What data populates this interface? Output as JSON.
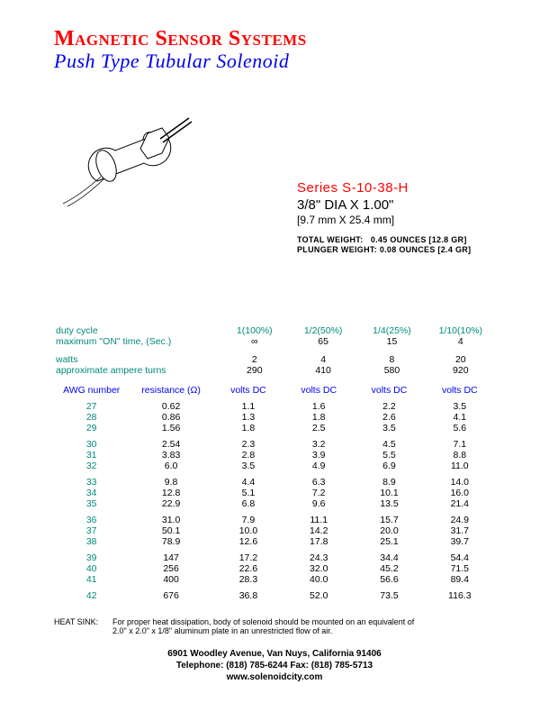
{
  "colors": {
    "red": "#ff0000",
    "blue": "#0000ee",
    "teal": "#008b7a",
    "black": "#000000"
  },
  "header": {
    "company": "Magnetic Sensor Systems",
    "subtitle": "Push Type Tubular Solenoid"
  },
  "series": {
    "name": "Series S-10-38-H",
    "dim_in": "3/8\" DIA X 1.00\"",
    "dim_mm": "[9.7 mm X 25.4 mm]",
    "total_weight_label": "TOTAL WEIGHT:",
    "total_weight_val": "0.45 OUNCES [12.8 GR]",
    "plunger_weight_label": "PLUNGER WEIGHT:",
    "plunger_weight_val": "0.08 OUNCES [2.4 GR]"
  },
  "duty": {
    "row1_label": "duty cycle",
    "row1": [
      "1(100%)",
      "1/2(50%)",
      "1/4(25%)",
      "1/10(10%)"
    ],
    "row2_label": "maximum \"ON\" time, (Sec.)",
    "row2": [
      "∞",
      "65",
      "15",
      "4"
    ],
    "row3_label": "watts",
    "row3": [
      "2",
      "4",
      "8",
      "20"
    ],
    "row4_label": "approximate ampere turns",
    "row4": [
      "290",
      "410",
      "580",
      "920"
    ]
  },
  "table": {
    "headers": [
      "AWG number",
      "resistance (Ω)",
      "volts DC",
      "volts DC",
      "volts DC",
      "volts DC"
    ],
    "groups": [
      [
        [
          "27",
          "0.62",
          "1.1",
          "1.6",
          "2.2",
          "3.5"
        ],
        [
          "28",
          "0.86",
          "1.3",
          "1.8",
          "2.6",
          "4.1"
        ],
        [
          "29",
          "1.56",
          "1.8",
          "2.5",
          "3.5",
          "5.6"
        ]
      ],
      [
        [
          "30",
          "2.54",
          "2.3",
          "3.2",
          "4.5",
          "7.1"
        ],
        [
          "31",
          "3.83",
          "2.8",
          "3.9",
          "5.5",
          "8.8"
        ],
        [
          "32",
          "6.0",
          "3.5",
          "4.9",
          "6.9",
          "11.0"
        ]
      ],
      [
        [
          "33",
          "9.8",
          "4.4",
          "6.3",
          "8.9",
          "14.0"
        ],
        [
          "34",
          "12.8",
          "5.1",
          "7.2",
          "10.1",
          "16.0"
        ],
        [
          "35",
          "22.9",
          "6.8",
          "9.6",
          "13.5",
          "21.4"
        ]
      ],
      [
        [
          "36",
          "31.0",
          "7.9",
          "11.1",
          "15.7",
          "24.9"
        ],
        [
          "37",
          "50.1",
          "10.0",
          "14.2",
          "20.0",
          "31.7"
        ],
        [
          "38",
          "78.9",
          "12.6",
          "17.8",
          "25.1",
          "39.7"
        ]
      ],
      [
        [
          "39",
          "147",
          "17.2",
          "24.3",
          "34.4",
          "54.4"
        ],
        [
          "40",
          "256",
          "22.6",
          "32.0",
          "45.2",
          "71.5"
        ],
        [
          "41",
          "400",
          "28.3",
          "40.0",
          "56.6",
          "89.4"
        ]
      ],
      [
        [
          "42",
          "676",
          "36.8",
          "52.0",
          "73.5",
          "116.3"
        ]
      ]
    ]
  },
  "heat": {
    "label": "HEAT SINK:",
    "text1": "For proper heat dissipation, body of solenoid should be mounted on an equivalent of",
    "text2": "2.0\" x 2.0\" x 1/8\" aluminum plate in an unrestricted flow of air."
  },
  "footer": {
    "addr": "6901 Woodley Avenue,   Van Nuys, California   91406",
    "tel": "Telephone: (818) 785-6244    Fax: (818) 785-5713",
    "web": "www.solenoidcity.com"
  }
}
